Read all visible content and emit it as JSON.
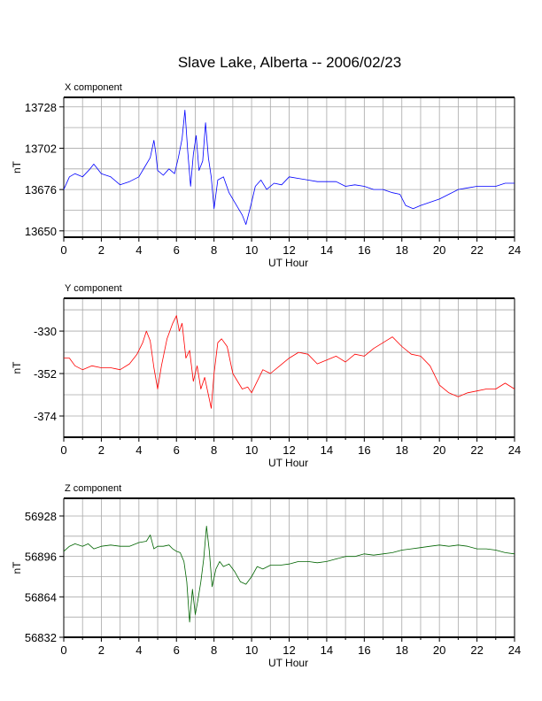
{
  "title": "Slave Lake, Alberta -- 2006/02/23",
  "colors": {
    "X": "#0000ff",
    "Y": "#ff0000",
    "Z": "#006400"
  },
  "chart_data": [
    {
      "type": "line",
      "panel_title": "X component",
      "xlabel": "UT Hour",
      "ylabel": "nT",
      "xlim": [
        0,
        24
      ],
      "ylim": [
        13646,
        13734
      ],
      "xticks": [
        0,
        2,
        4,
        6,
        8,
        10,
        12,
        14,
        16,
        18,
        20,
        22,
        24
      ],
      "yticks": [
        13650,
        13676,
        13702,
        13728
      ],
      "grid": true,
      "series": [
        {
          "x": [
            0,
            0.3,
            0.6,
            1.0,
            1.4,
            1.6,
            2.0,
            2.5,
            3.0,
            3.5,
            4.0,
            4.3,
            4.6,
            4.8,
            4.9,
            5.0,
            5.3,
            5.6,
            5.9,
            6.1,
            6.3,
            6.45,
            6.6,
            6.75,
            6.9,
            7.05,
            7.2,
            7.4,
            7.55,
            7.7,
            7.85,
            8.0,
            8.2,
            8.5,
            8.8,
            9.2,
            9.5,
            9.7,
            9.85,
            10.0,
            10.2,
            10.5,
            10.8,
            11.2,
            11.6,
            12.0,
            12.5,
            13.0,
            13.5,
            14.0,
            14.5,
            15.0,
            15.5,
            16.0,
            16.5,
            17.0,
            17.5,
            17.9,
            18.2,
            18.6,
            19.0,
            19.5,
            20.0,
            20.5,
            21.0,
            21.5,
            22.0,
            22.5,
            23.0,
            23.5,
            24.0
          ],
          "y": [
            13676,
            13684,
            13686,
            13684,
            13689,
            13692,
            13686,
            13684,
            13679,
            13681,
            13684,
            13690,
            13696,
            13707,
            13699,
            13688,
            13685,
            13689,
            13686,
            13696,
            13708,
            13726,
            13700,
            13678,
            13698,
            13710,
            13688,
            13694,
            13718,
            13696,
            13684,
            13664,
            13682,
            13684,
            13674,
            13666,
            13660,
            13654,
            13661,
            13668,
            13678,
            13682,
            13676,
            13680,
            13679,
            13684,
            13683,
            13682,
            13681,
            13681,
            13681,
            13678,
            13679,
            13678,
            13676,
            13676,
            13674,
            13673,
            13666,
            13664,
            13666,
            13668,
            13670,
            13673,
            13676,
            13677,
            13678,
            13678,
            13678,
            13680,
            13680
          ]
        }
      ]
    },
    {
      "type": "line",
      "panel_title": "Y component",
      "xlabel": "UT Hour",
      "ylabel": "nT",
      "xlim": [
        0,
        24
      ],
      "ylim": [
        -385,
        -313
      ],
      "xticks": [
        0,
        2,
        4,
        6,
        8,
        10,
        12,
        14,
        16,
        18,
        20,
        22,
        24
      ],
      "yticks": [
        -330,
        -352,
        -374
      ],
      "grid": true,
      "series": [
        {
          "x": [
            0,
            0.3,
            0.6,
            1.0,
            1.5,
            2.0,
            2.5,
            3.0,
            3.5,
            3.9,
            4.2,
            4.4,
            4.6,
            4.8,
            5.0,
            5.2,
            5.5,
            5.8,
            6.0,
            6.15,
            6.3,
            6.5,
            6.7,
            6.9,
            7.1,
            7.3,
            7.5,
            7.7,
            7.85,
            8.0,
            8.2,
            8.4,
            8.7,
            9.0,
            9.5,
            9.8,
            10.0,
            10.3,
            10.6,
            11.0,
            11.5,
            12.0,
            12.5,
            13.0,
            13.5,
            14.0,
            14.5,
            15.0,
            15.5,
            16.0,
            16.5,
            17.0,
            17.5,
            18.0,
            18.5,
            19.0,
            19.5,
            20.0,
            20.5,
            21.0,
            21.5,
            22.0,
            22.5,
            23.0,
            23.5,
            24.0
          ],
          "y": [
            -344,
            -344,
            -348,
            -350,
            -348,
            -349,
            -349,
            -350,
            -347,
            -342,
            -336,
            -330,
            -335,
            -349,
            -360,
            -348,
            -334,
            -326,
            -322,
            -330,
            -326,
            -344,
            -340,
            -356,
            -348,
            -360,
            -354,
            -363,
            -370,
            -352,
            -336,
            -334,
            -338,
            -352,
            -360,
            -359,
            -362,
            -356,
            -350,
            -352,
            -348,
            -344,
            -341,
            -342,
            -347,
            -345,
            -343,
            -346,
            -342,
            -343,
            -339,
            -336,
            -333,
            -338,
            -342,
            -343,
            -348,
            -358,
            -362,
            -364,
            -362,
            -361,
            -360,
            -360,
            -357,
            -360
          ]
        }
      ]
    },
    {
      "type": "line",
      "panel_title": "Z component",
      "xlabel": "UT Hour",
      "ylabel": "nT",
      "xlim": [
        0,
        24
      ],
      "ylim": [
        56832,
        56942
      ],
      "xticks": [
        0,
        2,
        4,
        6,
        8,
        10,
        12,
        14,
        16,
        18,
        20,
        22,
        24
      ],
      "yticks": [
        56832,
        56864,
        56896,
        56928
      ],
      "grid": true,
      "series": [
        {
          "x": [
            0,
            0.3,
            0.6,
            1.0,
            1.3,
            1.6,
            2.0,
            2.5,
            3.0,
            3.5,
            4.0,
            4.4,
            4.6,
            4.8,
            5.0,
            5.3,
            5.6,
            5.8,
            6.0,
            6.2,
            6.4,
            6.55,
            6.7,
            6.85,
            7.0,
            7.15,
            7.3,
            7.45,
            7.6,
            7.75,
            7.9,
            8.1,
            8.3,
            8.5,
            8.8,
            9.1,
            9.4,
            9.7,
            10.0,
            10.3,
            10.6,
            11.0,
            11.5,
            12.0,
            12.5,
            13.0,
            13.5,
            14.0,
            14.5,
            15.0,
            15.5,
            16.0,
            16.5,
            17.0,
            17.5,
            18.0,
            18.5,
            19.0,
            19.5,
            20.0,
            20.5,
            21.0,
            21.5,
            22.0,
            22.5,
            23.0,
            23.5,
            24.0
          ],
          "y": [
            56900,
            56904,
            56906,
            56904,
            56906,
            56902,
            56904,
            56905,
            56904,
            56904,
            56907,
            56908,
            56913,
            56902,
            56904,
            56904,
            56905,
            56902,
            56900,
            56899,
            56892,
            56876,
            56844,
            56870,
            56850,
            56862,
            56876,
            56894,
            56920,
            56900,
            56872,
            56886,
            56892,
            56888,
            56890,
            56884,
            56876,
            56874,
            56880,
            56888,
            56886,
            56889,
            56889,
            56890,
            56892,
            56892,
            56891,
            56892,
            56894,
            56896,
            56896,
            56898,
            56897,
            56898,
            56899,
            56901,
            56902,
            56903,
            56904,
            56905,
            56904,
            56905,
            56904,
            56902,
            56902,
            56901,
            56899,
            56898
          ]
        }
      ]
    }
  ]
}
